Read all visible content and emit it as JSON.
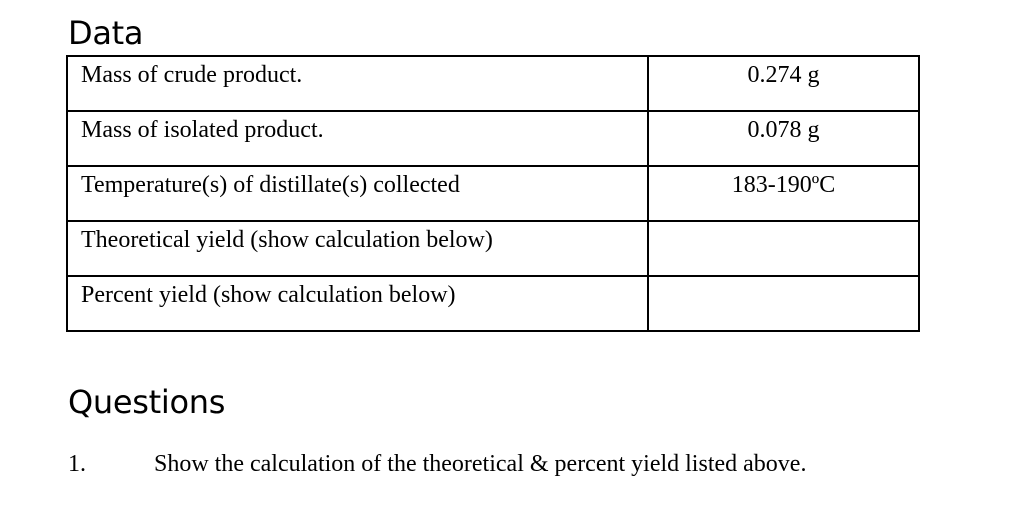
{
  "data_section": {
    "heading": "Data",
    "rows": [
      {
        "label": "Mass of crude product.",
        "value": "0.274 g"
      },
      {
        "label": "Mass of isolated product.",
        "value": "0.078 g"
      },
      {
        "label": "Temperature(s) of distillate(s) collected",
        "value": "183-190ºC"
      },
      {
        "label": "Theoretical yield (show calculation below)",
        "value": ""
      },
      {
        "label": "Percent yield (show calculation below)",
        "value": ""
      }
    ]
  },
  "questions_section": {
    "heading": "Questions",
    "items": [
      {
        "number": "1.",
        "text": "Show the calculation of the theoretical & percent yield listed above."
      }
    ]
  }
}
